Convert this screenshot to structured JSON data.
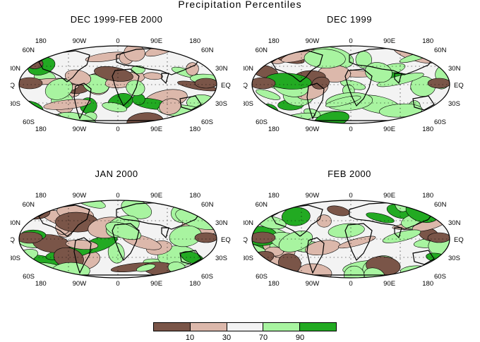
{
  "title": "Precipitation Percentiles",
  "colors": {
    "below_10": "#7a5548",
    "p10_30": "#dcb8ab",
    "p30_70": "#f3f3f3",
    "p70_90": "#a8f4a0",
    "above_90": "#22aa22",
    "land_outline": "#000000"
  },
  "panels": [
    {
      "title": "DEC 1999-FEB 2000"
    },
    {
      "title": "DEC 1999"
    },
    {
      "title": "JAN 2000"
    },
    {
      "title": "FEB 2000"
    }
  ],
  "lon_labels": [
    "180",
    "90W",
    "0",
    "90E",
    "180"
  ],
  "lat_labels": [
    "60N",
    "30N",
    "EQ",
    "30S",
    "60S"
  ],
  "legend": {
    "boundaries": [
      "10",
      "30",
      "70",
      "90"
    ]
  }
}
